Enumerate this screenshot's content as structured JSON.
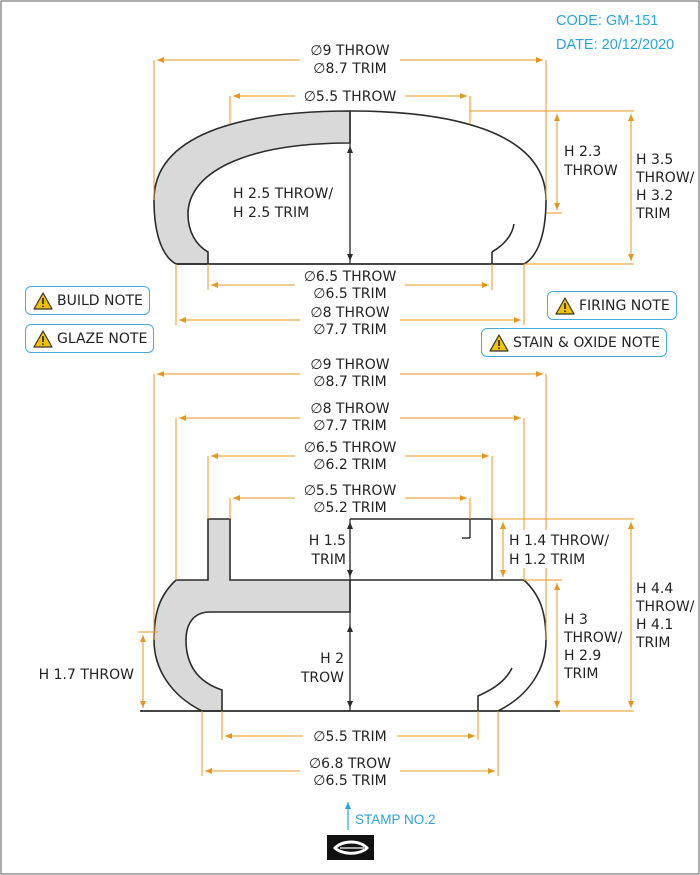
{
  "header": {
    "code": "CODE: GM-151",
    "date": "DATE: 20/12/2020"
  },
  "notes": {
    "build": "BUILD NOTE",
    "glaze": "GLAZE NOTE",
    "firing": "FIRING NOTE",
    "stain": "STAIN & OXIDE NOTE"
  },
  "top_view": {
    "dia_outer": [
      "∅9 THROW",
      "∅8.7 TRIM"
    ],
    "dia_knob": [
      "∅5.5 THROW"
    ],
    "h_right": [
      "H 2.3",
      "THROW"
    ],
    "h_total": [
      "H 3.5",
      "THROW/",
      "H 3.2",
      "TRIM"
    ],
    "h_center": [
      "H 2.5 THROW/",
      "H 2.5 TRIM"
    ],
    "dia_foot": [
      "∅6.5 THROW",
      "∅6.5 TRIM"
    ],
    "dia_base": [
      "∅8 THROW",
      "∅7.7 TRIM"
    ]
  },
  "bottom_view": {
    "dia_outer": [
      "∅9 THROW",
      "∅8.7 TRIM"
    ],
    "dia_second": [
      "∅8 THROW",
      "∅7.7 TRIM"
    ],
    "dia_third": [
      "∅6.5 THROW",
      "∅6.2 TRIM"
    ],
    "dia_flange": [
      "∅5.5 THROW",
      "∅5.2 TRIM"
    ],
    "h_flange_left": [
      "H 1.5",
      "TRIM"
    ],
    "h_flange_right": [
      "H 1.4 THROW/",
      "H 1.2 TRIM"
    ],
    "h_body_right": [
      "H 3",
      "THROW/",
      "H 2.9",
      "TRIM"
    ],
    "h_total": [
      "H 4.4",
      "THROW/",
      "H 4.1",
      "TRIM"
    ],
    "h_center": [
      "H 2",
      "TROW"
    ],
    "h_left": [
      "H 1.7 THROW"
    ],
    "dia_foot_trim": [
      "∅5.5 TRIM"
    ],
    "dia_base": [
      "∅6.8 TROW",
      "∅6.5 TRIM"
    ]
  },
  "stamp": {
    "label": "STAMP NO.2",
    "icon": "leaf-stamp-icon"
  },
  "colors": {
    "dimension": "#e8961e",
    "accent": "#2aa3d8",
    "section_fill": "#d9d9d9",
    "warning": "#f2c200"
  }
}
